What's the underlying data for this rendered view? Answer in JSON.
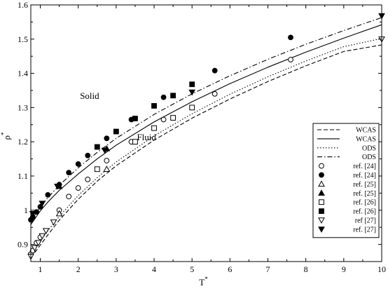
{
  "chart_data": {
    "type": "line",
    "xlabel": "T",
    "xlabel_sup": "*",
    "ylabel": "ρ",
    "ylabel_sup": "*",
    "xlim": [
      0.75,
      10
    ],
    "ylim": [
      0.85,
      1.6
    ],
    "xticks": [
      1,
      2,
      3,
      4,
      5,
      6,
      7,
      8,
      9,
      10
    ],
    "xtick_labels": [
      "1",
      "2",
      "3",
      "4",
      "5",
      "6",
      "7",
      "8",
      "9",
      "10"
    ],
    "yticks": [
      0.9,
      1.0,
      1.1,
      1.2,
      1.3,
      1.4,
      1.5,
      1.6
    ],
    "ytick_labels": [
      "0.9",
      "1",
      "1.1",
      "1.2",
      "1.3",
      "1.4",
      "1.5",
      "1.6"
    ],
    "grid": false,
    "legend_position": "lower-right",
    "annotations": [
      {
        "text": "Solid",
        "x": 2.3,
        "y": 1.325
      },
      {
        "text": "Fluid",
        "x": 3.8,
        "y": 1.205
      }
    ],
    "series": [
      {
        "name": "WCAS",
        "kind": "line",
        "style": "dashed",
        "x": [
          0.75,
          0.9,
          1.0,
          1.2,
          1.5,
          2.0,
          2.5,
          3.0,
          4.0,
          5.0,
          6.0,
          7.0,
          8.0,
          9.0,
          10.0
        ],
        "y": [
          0.862,
          0.883,
          0.898,
          0.928,
          0.971,
          1.032,
          1.085,
          1.13,
          1.205,
          1.269,
          1.325,
          1.376,
          1.422,
          1.464,
          1.483
        ]
      },
      {
        "name": "WCAS",
        "kind": "line",
        "style": "solid",
        "x": [
          0.75,
          0.9,
          1.0,
          1.2,
          1.5,
          2.0,
          2.5,
          3.0,
          4.0,
          5.0,
          6.0,
          7.0,
          8.0,
          9.0,
          10.0
        ],
        "y": [
          0.958,
          0.982,
          0.998,
          1.024,
          1.058,
          1.106,
          1.15,
          1.19,
          1.258,
          1.317,
          1.37,
          1.418,
          1.462,
          1.503,
          1.542
        ]
      },
      {
        "name": "ODS",
        "kind": "line",
        "style": "dotted",
        "x": [
          0.75,
          0.9,
          1.0,
          1.2,
          1.5,
          2.0,
          2.5,
          3.0,
          4.0,
          5.0,
          6.0,
          7.0,
          8.0,
          9.0,
          10.0
        ],
        "y": [
          0.872,
          0.895,
          0.91,
          0.94,
          0.982,
          1.043,
          1.095,
          1.141,
          1.217,
          1.282,
          1.339,
          1.39,
          1.436,
          1.478,
          1.502
        ]
      },
      {
        "name": "ODS",
        "kind": "line",
        "style": "dashdot",
        "x": [
          0.75,
          0.9,
          1.0,
          1.2,
          1.5,
          2.0,
          2.5,
          3.0,
          4.0,
          5.0,
          6.0,
          7.0,
          8.0,
          9.0,
          10.0
        ],
        "y": [
          0.968,
          0.993,
          1.009,
          1.037,
          1.073,
          1.124,
          1.169,
          1.21,
          1.28,
          1.34,
          1.393,
          1.441,
          1.485,
          1.525,
          1.563
        ]
      },
      {
        "name": "ref. [24]",
        "kind": "marker",
        "marker": "circle-open",
        "x": [
          0.75,
          0.8,
          0.9,
          1.0,
          1.5,
          1.75,
          2.0,
          2.25,
          2.75,
          3.4,
          4.25,
          5.6,
          7.6
        ],
        "y": [
          0.872,
          0.882,
          0.905,
          0.921,
          1.0,
          1.04,
          1.065,
          1.09,
          1.145,
          1.2,
          1.265,
          1.34,
          1.44
        ]
      },
      {
        "name": "ref. [24]",
        "kind": "marker",
        "marker": "circle-filled",
        "x": [
          0.75,
          0.8,
          0.9,
          1.0,
          1.2,
          1.5,
          1.75,
          2.0,
          2.25,
          2.75,
          3.4,
          4.25,
          5.6,
          7.6
        ],
        "y": [
          0.972,
          0.98,
          0.995,
          1.01,
          1.045,
          1.075,
          1.11,
          1.135,
          1.16,
          1.21,
          1.265,
          1.33,
          1.408,
          1.505
        ]
      },
      {
        "name": "ref. [25]",
        "kind": "marker",
        "marker": "triangle-up-open",
        "x": [
          1.5,
          2.75
        ],
        "y": [
          0.99,
          1.12
        ]
      },
      {
        "name": "ref. [25]",
        "kind": "marker",
        "marker": "triangle-up-filled",
        "x": [
          1.5,
          2.75
        ],
        "y": [
          1.07,
          1.18
        ]
      },
      {
        "name": "ref. [26]",
        "kind": "marker",
        "marker": "square-open",
        "x": [
          2.5,
          3.5,
          4.0,
          4.5,
          5.0
        ],
        "y": [
          1.12,
          1.2,
          1.24,
          1.27,
          1.3
        ]
      },
      {
        "name": "ref. [26]",
        "kind": "marker",
        "marker": "square-filled",
        "x": [
          2.5,
          3.0,
          3.5,
          4.0,
          4.5,
          5.0
        ],
        "y": [
          1.185,
          1.23,
          1.268,
          1.305,
          1.335,
          1.368
        ]
      },
      {
        "name": "ref [27]",
        "kind": "marker",
        "marker": "triangle-down-open",
        "x": [
          0.75,
          0.85,
          0.95,
          1.05,
          1.15,
          1.35,
          10.0
        ],
        "y": [
          0.865,
          0.89,
          0.905,
          0.925,
          0.94,
          0.965,
          1.5
        ]
      },
      {
        "name": "ref. [27]",
        "kind": "marker",
        "marker": "triangle-down-filled",
        "x": [
          0.8,
          1.05,
          1.45,
          2.7,
          5.0,
          10.0
        ],
        "y": [
          0.99,
          1.02,
          1.07,
          1.175,
          1.345,
          1.568
        ]
      }
    ]
  }
}
